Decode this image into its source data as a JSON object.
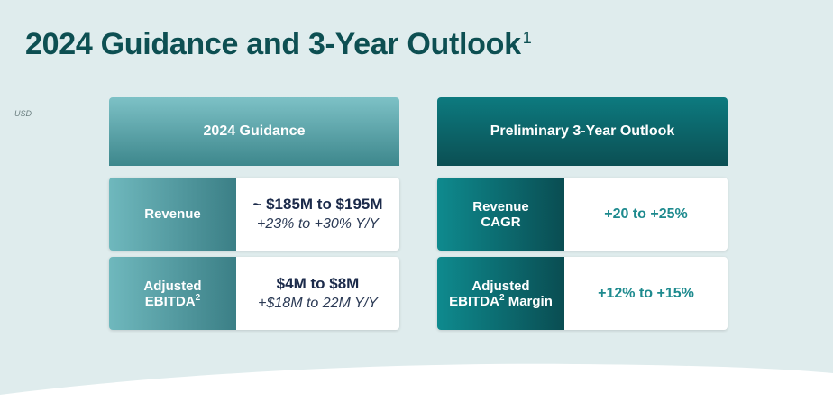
{
  "title": {
    "text": "2024 Guidance and 3-Year Outlook",
    "footnote": "1"
  },
  "currency_note": "USD",
  "left_column": {
    "header": "2024 Guidance",
    "rows": [
      {
        "label_line1": "Revenue",
        "label_line2": "",
        "label_sup": "",
        "main": "~ $185M to $195M",
        "sub": "+23% to +30% Y/Y"
      },
      {
        "label_line1": "Adjusted",
        "label_line2": "EBITDA",
        "label_sup": "2",
        "main": "$4M to $8M",
        "sub": "+$18M to 22M Y/Y"
      }
    ]
  },
  "right_column": {
    "header": "Preliminary 3-Year Outlook",
    "rows": [
      {
        "label_line1": "Revenue",
        "label_line2": "CAGR",
        "label_sup": "",
        "label_suffix": "",
        "value": "+20 to +25%"
      },
      {
        "label_line1": "Adjusted",
        "label_line2": "EBITDA",
        "label_sup": "2",
        "label_suffix": " Margin",
        "value": "+12% to +15%"
      }
    ]
  },
  "colors": {
    "title": "#0d4f52",
    "background": "#dfeced",
    "teal_value": "#1d8a8e"
  }
}
